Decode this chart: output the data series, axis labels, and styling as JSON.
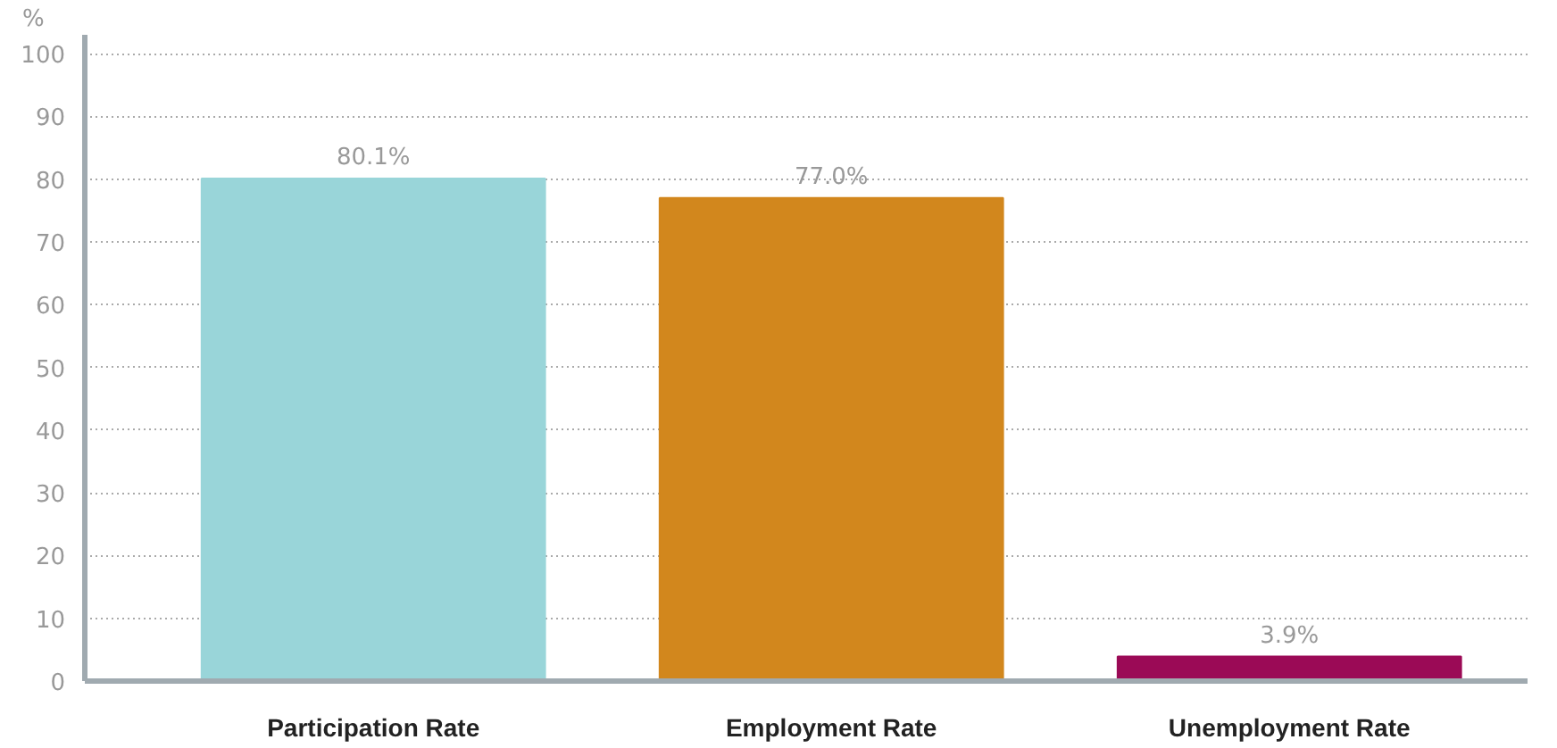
{
  "chart_data": {
    "type": "bar",
    "ylabel": "%",
    "categories": [
      "Participation Rate",
      "Employment Rate",
      "Unemployment Rate"
    ],
    "values": [
      80.1,
      77.0,
      3.9
    ],
    "colors": [
      "#99d5d9",
      "#d2871d",
      "#9b0a56"
    ],
    "value_labels": [
      "80.1%",
      "77.0%",
      "3.9%"
    ],
    "ylim": [
      0,
      103
    ],
    "yticks": [
      0,
      10,
      20,
      30,
      40,
      50,
      60,
      70,
      80,
      90,
      100
    ],
    "grid": "y"
  }
}
